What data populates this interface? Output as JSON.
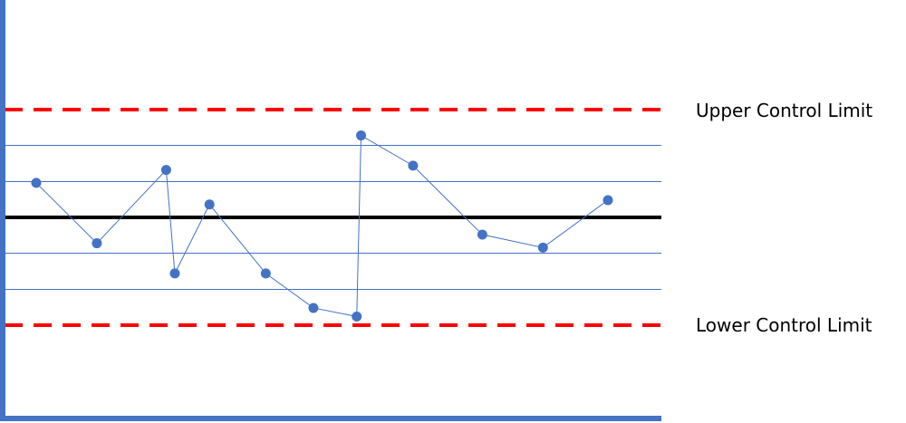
{
  "chart_data": {
    "type": "line",
    "title": "",
    "xlabel": "",
    "ylabel": "",
    "ylim": [
      0,
      100
    ],
    "grid": "horizontal sigma bands",
    "center_line": 50,
    "upper_control_limit": 75,
    "lower_control_limit": 25,
    "sigma_lines": [
      33.3,
      41.7,
      58.3,
      66.7
    ],
    "series": [
      {
        "points": [
          {
            "x": 1,
            "y": 58
          },
          {
            "x": 2,
            "y": 44
          },
          {
            "x": 3,
            "y": 61
          },
          {
            "x": 4,
            "y": 37
          },
          {
            "x": 5,
            "y": 53
          },
          {
            "x": 6,
            "y": 37
          },
          {
            "x": 7,
            "y": 29
          },
          {
            "x": 8,
            "y": 27
          },
          {
            "x": 9,
            "y": 69
          },
          {
            "x": 10,
            "y": 62
          },
          {
            "x": 11,
            "y": 46
          },
          {
            "x": 12,
            "y": 43
          },
          {
            "x": 13,
            "y": 54
          }
        ],
        "x_positions": [
          1.0,
          2.4,
          4.0,
          4.2,
          5.0,
          6.3,
          7.4,
          8.4,
          8.5,
          9.7,
          11.3,
          12.7,
          14.2
        ]
      }
    ],
    "colors": {
      "series": "#4472C4",
      "axis": "#4472C4",
      "center": "#000000",
      "limits": "#FF0000",
      "grid": "#4472C4"
    }
  },
  "labels": {
    "upper": "Upper Control Limit",
    "lower": "Lower Control Limit"
  }
}
